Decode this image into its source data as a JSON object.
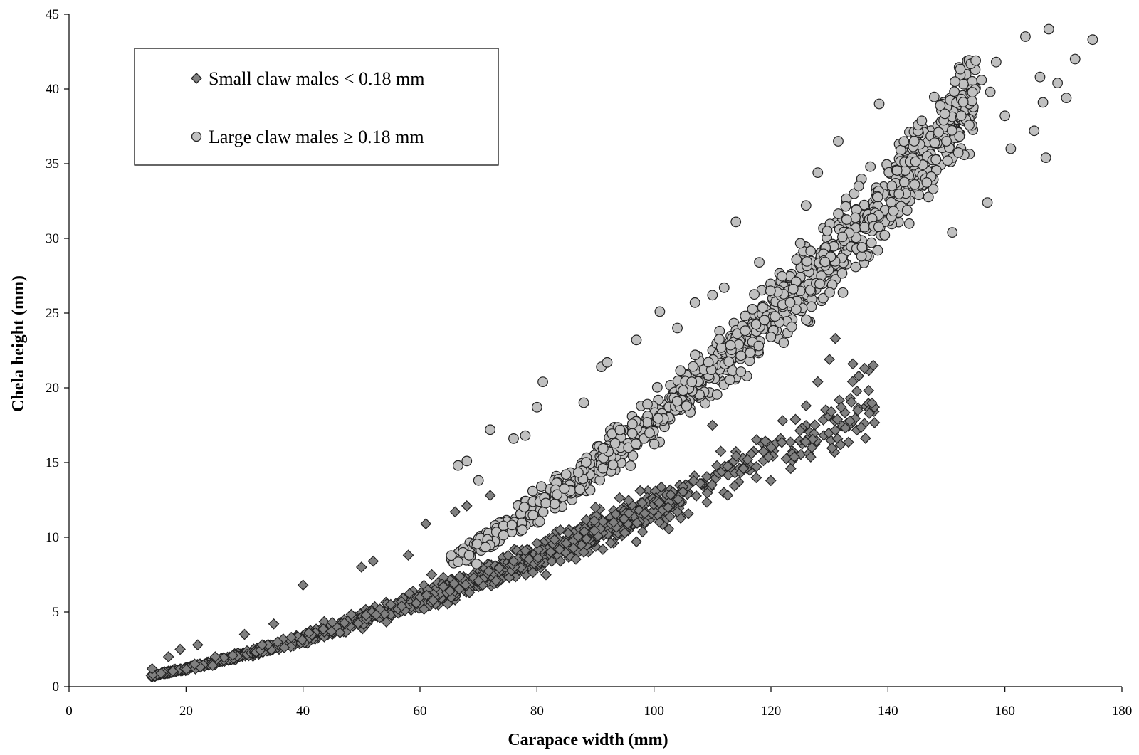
{
  "chart_data": {
    "type": "scatter",
    "title": "",
    "xlabel": "Carapace width (mm)",
    "ylabel": "Chela height (mm)",
    "xlim": [
      0,
      180
    ],
    "ylim": [
      0,
      45
    ],
    "x_ticks": [
      "0",
      "20",
      "40",
      "60",
      "80",
      "100",
      "120",
      "140",
      "160",
      "180"
    ],
    "y_ticks": [
      "0",
      "5",
      "10",
      "15",
      "20",
      "25",
      "30",
      "35",
      "40",
      "45"
    ],
    "grid": false,
    "legend_position": "top-left",
    "series": [
      {
        "name": "Small claw males < 0.18 mm",
        "marker": "diamond",
        "color": "#808080",
        "trend": {
          "a": 0.0166,
          "b": 1.43
        },
        "n_points": 1300,
        "x_range": [
          14,
          138
        ],
        "points": [
          [
            14.2,
            1.2
          ],
          [
            17,
            2.0
          ],
          [
            19,
            2.5
          ],
          [
            22,
            2.8
          ],
          [
            25,
            2.0
          ],
          [
            28,
            2.1
          ],
          [
            30,
            3.5
          ],
          [
            33,
            2.8
          ],
          [
            35,
            4.2
          ],
          [
            38,
            3.3
          ],
          [
            40,
            6.8
          ],
          [
            41,
            3.6
          ],
          [
            45,
            4.3
          ],
          [
            50,
            8.0
          ],
          [
            52,
            8.4
          ],
          [
            55,
            5.5
          ],
          [
            58,
            8.8
          ],
          [
            61,
            10.9
          ],
          [
            62,
            7.5
          ],
          [
            64,
            6.7
          ],
          [
            66,
            11.7
          ],
          [
            68,
            12.1
          ],
          [
            70,
            7.1
          ],
          [
            72,
            12.8
          ],
          [
            73,
            7.1
          ],
          [
            76,
            8.4
          ],
          [
            78,
            9.1
          ],
          [
            80,
            9.6
          ],
          [
            84,
            8.4
          ],
          [
            85,
            9.6
          ],
          [
            88,
            9.0
          ],
          [
            90,
            12.0
          ],
          [
            95,
            10.3
          ],
          [
            97,
            9.7
          ],
          [
            98,
            12.3
          ],
          [
            104,
            11.7
          ],
          [
            110,
            17.5
          ],
          [
            116,
            15.2
          ],
          [
            122,
            17.8
          ],
          [
            126,
            18.8
          ],
          [
            127,
            16.0
          ],
          [
            128,
            20.4
          ],
          [
            130,
            21.9
          ],
          [
            131,
            23.3
          ],
          [
            132,
            18.7
          ],
          [
            134,
            21.6
          ],
          [
            136,
            21.3
          ],
          [
            137.5,
            21.5
          ]
        ]
      },
      {
        "name": "Large claw males ≥ 0.18 mm",
        "marker": "circle",
        "color": "#c0c0c0",
        "trend": {
          "a": 0.0042,
          "b": 1.815
        },
        "n_points": 1100,
        "x_range": [
          65,
          175
        ],
        "points": [
          [
            66.5,
            14.8
          ],
          [
            68,
            15.1
          ],
          [
            70,
            13.8
          ],
          [
            72,
            17.2
          ],
          [
            76,
            16.6
          ],
          [
            78,
            16.8
          ],
          [
            80,
            18.7
          ],
          [
            81,
            20.4
          ],
          [
            88,
            19.0
          ],
          [
            91,
            21.4
          ],
          [
            92,
            21.7
          ],
          [
            97,
            23.2
          ],
          [
            101,
            25.1
          ],
          [
            104,
            24.0
          ],
          [
            107,
            25.7
          ],
          [
            110,
            26.2
          ],
          [
            112,
            26.7
          ],
          [
            114,
            31.1
          ],
          [
            118,
            28.4
          ],
          [
            126,
            32.2
          ],
          [
            128,
            34.4
          ],
          [
            131.5,
            36.5
          ],
          [
            135,
            33.5
          ],
          [
            137,
            34.8
          ],
          [
            138.5,
            39.0
          ],
          [
            144.5,
            36.5
          ],
          [
            148,
            36.4
          ],
          [
            150,
            36.5
          ],
          [
            151,
            30.4
          ],
          [
            155,
            41.9
          ],
          [
            156,
            40.6
          ],
          [
            157,
            32.4
          ],
          [
            157.5,
            39.8
          ],
          [
            158.5,
            41.8
          ],
          [
            160,
            38.2
          ],
          [
            161,
            36.0
          ],
          [
            163.5,
            43.5
          ],
          [
            165,
            37.2
          ],
          [
            166,
            40.8
          ],
          [
            166.5,
            39.1
          ],
          [
            167,
            35.4
          ],
          [
            167.5,
            44.0
          ],
          [
            169,
            40.4
          ],
          [
            170.5,
            39.4
          ],
          [
            172,
            42.0
          ],
          [
            175,
            43.3
          ]
        ]
      }
    ]
  }
}
